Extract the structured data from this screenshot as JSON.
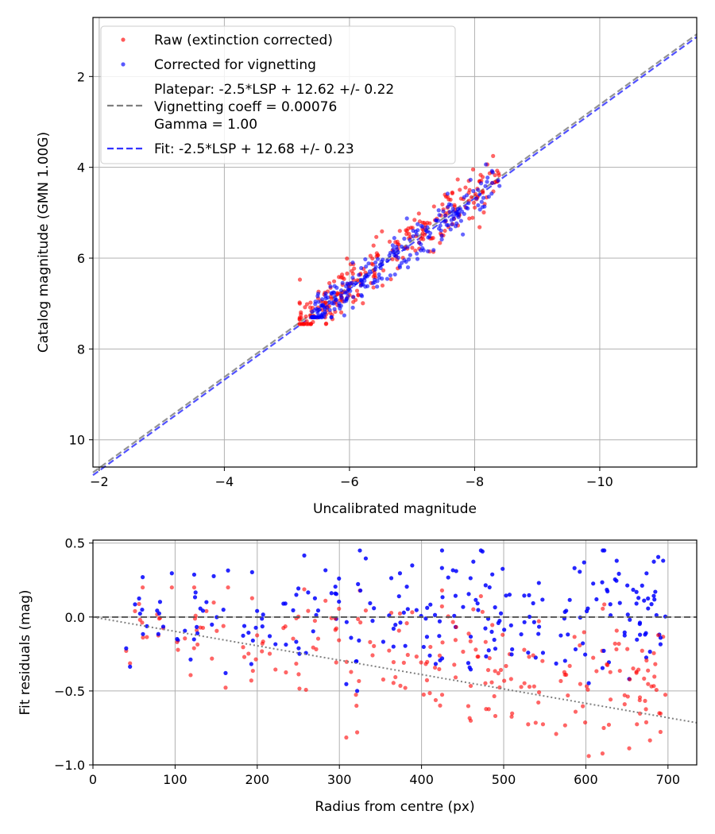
{
  "chart_data": [
    {
      "type": "scatter",
      "title": "",
      "xlabel": "Uncalibrated magnitude",
      "ylabel": "Catalog magnitude (GMN 1.00G)",
      "xlim": [
        -1.9,
        -11.55
      ],
      "ylim": [
        10.6,
        0.7
      ],
      "x_inverted": true,
      "y_inverted": true,
      "grid": true,
      "xticks": [
        -2,
        -4,
        -6,
        -8,
        -10
      ],
      "xtick_labels": [
        "−2",
        "−4",
        "−6",
        "−8",
        "−10"
      ],
      "yticks": [
        2,
        4,
        6,
        8,
        10
      ],
      "ytick_labels": [
        "2",
        "4",
        "6",
        "8",
        "10"
      ],
      "legend_position": "upper-left",
      "series": [
        {
          "name": "Raw (extinction corrected)",
          "kind": "points",
          "color": "#ff0000",
          "n_points": 260,
          "x_range": [
            -5.2,
            -8.4
          ],
          "y_range": [
            3.75,
            7.45
          ],
          "trend": {
            "slope": 1.0,
            "intercept": 12.62
          },
          "scatter_sd": 0.27
        },
        {
          "name": "Corrected for vignetting",
          "kind": "points",
          "color": "#0000ff",
          "n_points": 260,
          "x_range": [
            -5.4,
            -8.4
          ],
          "y_range": [
            3.9,
            7.3
          ],
          "trend": {
            "slope": 1.0,
            "intercept": 12.68
          },
          "scatter_sd": 0.22
        },
        {
          "name": "Platepar: -2.5*LSP + 12.62 +/- 0.22\nVignetting coeff = 0.00076\nGamma = 1.00",
          "legend_lines": [
            "Platepar: -2.5*LSP + 12.62 +/- 0.22",
            "Vignetting coeff = 0.00076",
            "Gamma = 1.00"
          ],
          "kind": "line",
          "style": "dashed",
          "color": "#808080",
          "slope": 1.0,
          "intercept": 12.62
        },
        {
          "name": "Fit: -2.5*LSP + 12.68 +/- 0.23",
          "legend_lines": [
            "Fit: -2.5*LSP + 12.68 +/- 0.23"
          ],
          "kind": "line",
          "style": "dashed",
          "color": "#3333ff",
          "slope": 1.0,
          "intercept": 12.68
        }
      ]
    },
    {
      "type": "scatter",
      "title": "",
      "xlabel": "Radius from centre (px)",
      "ylabel": "Fit residuals (mag)",
      "xlim": [
        0,
        735
      ],
      "ylim": [
        -1.0,
        0.52
      ],
      "grid": true,
      "xticks": [
        0,
        100,
        200,
        300,
        400,
        500,
        600,
        700
      ],
      "xtick_labels": [
        "0",
        "100",
        "200",
        "300",
        "400",
        "500",
        "600",
        "700"
      ],
      "yticks": [
        0.5,
        0.0,
        -0.5,
        -1.0
      ],
      "ytick_labels": [
        "0.5",
        "0.0",
        "−0.5",
        "−1.0"
      ],
      "series": [
        {
          "name": "Raw residuals",
          "kind": "points",
          "color": "#ff0000",
          "n_points": 240,
          "x_range": [
            40,
            700
          ],
          "y_range": [
            -0.94,
            0.2
          ],
          "trend": {
            "type": "linear",
            "at_x0": 0.0,
            "slope_per_px": -0.00076
          },
          "scatter_sd": 0.2
        },
        {
          "name": "Vignetting-corrected residuals",
          "kind": "points",
          "color": "#0000ff",
          "n_points": 240,
          "x_range": [
            40,
            700
          ],
          "y_range": [
            -0.5,
            0.45
          ],
          "trend": {
            "type": "constant",
            "value": 0.0
          },
          "scatter_sd": 0.2
        },
        {
          "name": "Zero line",
          "kind": "line",
          "style": "dashed",
          "color": "#555555",
          "points": [
            [
              0,
              0.0
            ],
            [
              735,
              0.0
            ]
          ]
        },
        {
          "name": "Vignetting model",
          "kind": "line",
          "style": "dotted",
          "color": "#808080",
          "points": [
            [
              0,
              0.0
            ],
            [
              735,
              -0.715
            ]
          ]
        }
      ]
    }
  ]
}
